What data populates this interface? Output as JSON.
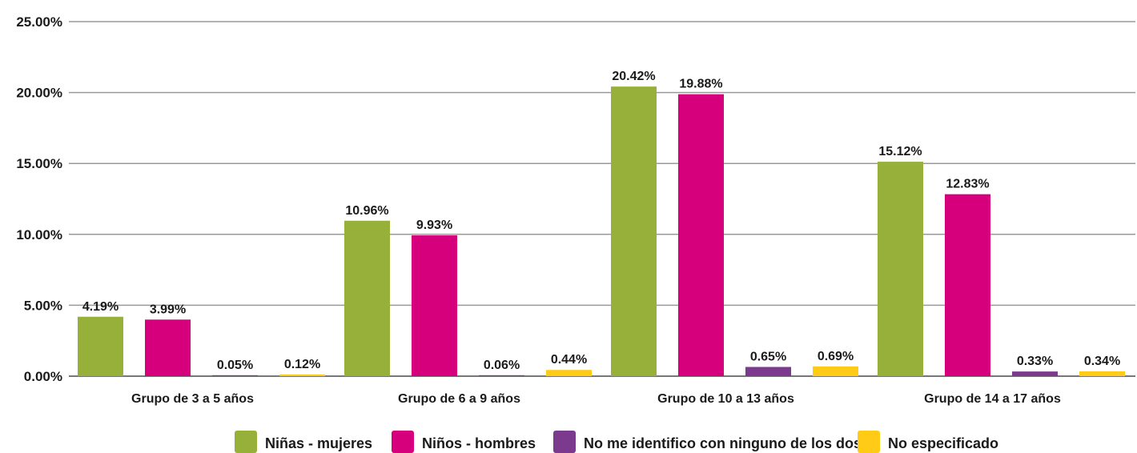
{
  "chart_data": {
    "type": "bar",
    "title": "",
    "xlabel": "",
    "ylabel": "",
    "ylim": [
      0,
      25
    ],
    "yticks": [
      "0.00%",
      "5.00%",
      "10.00%",
      "15.00%",
      "20.00%",
      "25.00%"
    ],
    "ytick_values": [
      0,
      5,
      10,
      15,
      20,
      25
    ],
    "grid": true,
    "legend_position": "bottom",
    "categories": [
      "Grupo de 3 a 5 años",
      "Grupo de 6 a 9 años",
      "Grupo de 10 a 13 años",
      "Grupo de 14 a 17 años"
    ],
    "series": [
      {
        "name": "Niñas - mujeres",
        "color": "#97b03a",
        "values": [
          4.19,
          10.96,
          20.42,
          15.12
        ],
        "labels": [
          "4.19%",
          "10.96%",
          "20.42%",
          "15.12%"
        ]
      },
      {
        "name": "Niños - hombres",
        "color": "#d6007d",
        "values": [
          3.99,
          9.93,
          19.88,
          12.83
        ],
        "labels": [
          "3.99%",
          "9.93%",
          "19.88%",
          "12.83%"
        ]
      },
      {
        "name": "No me identifico con ninguno de los dos",
        "color": "#7b3a8e",
        "values": [
          0.05,
          0.06,
          0.65,
          0.33
        ],
        "labels": [
          "0.05%",
          "0.06%",
          "0.65%",
          "0.33%"
        ]
      },
      {
        "name": "No especificado",
        "color": "#ffcb16",
        "values": [
          0.12,
          0.44,
          0.69,
          0.34
        ],
        "labels": [
          "0.12%",
          "0.44%",
          "0.69%",
          "0.34%"
        ]
      }
    ]
  }
}
